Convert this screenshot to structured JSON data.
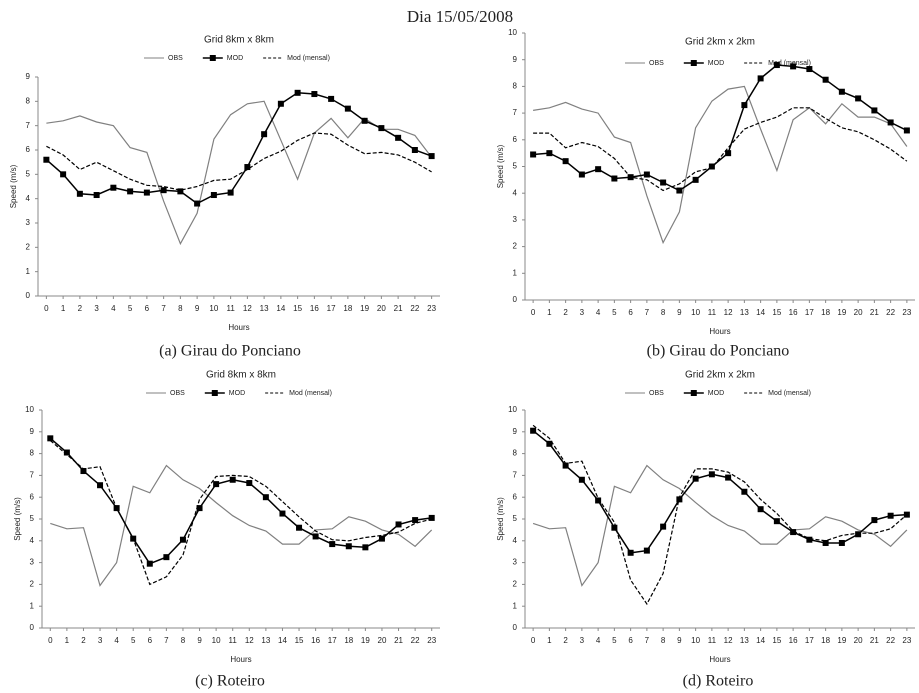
{
  "title": "Dia 15/05/2008",
  "chart_data": [
    {
      "type": "line",
      "title": "Grid 8km x 8km",
      "caption": "(a) Girau do Ponciano",
      "xlabel": "Hours",
      "ylabel": "Speed (m/s)",
      "x": [
        0,
        1,
        2,
        3,
        4,
        5,
        6,
        7,
        8,
        9,
        10,
        11,
        12,
        13,
        14,
        15,
        16,
        17,
        18,
        19,
        20,
        21,
        22,
        23
      ],
      "xlim": [
        -0.5,
        23.5
      ],
      "xticks": [
        0,
        1,
        2,
        3,
        4,
        5,
        6,
        7,
        8,
        9,
        10,
        11,
        12,
        13,
        14,
        15,
        16,
        17,
        18,
        19,
        20,
        21,
        22,
        23
      ],
      "ylim": [
        0,
        9
      ],
      "yticks": [
        0,
        1,
        2,
        3,
        4,
        5,
        6,
        7,
        8,
        9
      ],
      "series": [
        {
          "name": "OBS",
          "color": "#808080",
          "dashed": false,
          "marker": "none",
          "values": [
            7.1,
            7.2,
            7.4,
            7.15,
            7.0,
            6.1,
            5.9,
            3.9,
            2.15,
            3.4,
            6.45,
            7.45,
            7.9,
            8.0,
            6.4,
            4.8,
            6.7,
            7.3,
            6.5,
            7.3,
            6.85,
            6.85,
            6.6,
            5.7
          ]
        },
        {
          "name": "MOD",
          "color": "#000000",
          "dashed": false,
          "marker": "square",
          "values": [
            5.6,
            5.0,
            4.2,
            4.15,
            4.45,
            4.3,
            4.25,
            4.35,
            4.3,
            3.8,
            4.15,
            4.25,
            5.3,
            6.65,
            7.9,
            8.35,
            8.3,
            8.1,
            7.7,
            7.2,
            6.9,
            6.5,
            6.0,
            5.75
          ]
        },
        {
          "name": "Mod (mensal)",
          "color": "#000000",
          "dashed": true,
          "marker": "none",
          "values": [
            6.15,
            5.8,
            5.2,
            5.5,
            5.15,
            4.8,
            4.55,
            4.5,
            4.35,
            4.5,
            4.75,
            4.8,
            5.2,
            5.65,
            5.95,
            6.4,
            6.7,
            6.65,
            6.2,
            5.85,
            5.9,
            5.8,
            5.5,
            5.1
          ]
        }
      ]
    },
    {
      "type": "line",
      "title": "Grid 2km x 2km",
      "caption": "(b) Girau do Ponciano",
      "xlabel": "Hours",
      "ylabel": "Speed (m/s)",
      "x": [
        0,
        1,
        2,
        3,
        4,
        5,
        6,
        7,
        8,
        9,
        10,
        11,
        12,
        13,
        14,
        15,
        16,
        17,
        18,
        19,
        20,
        21,
        22,
        23
      ],
      "xlim": [
        -0.5,
        23.5
      ],
      "xticks": [
        0,
        1,
        2,
        3,
        4,
        5,
        6,
        7,
        8,
        9,
        10,
        11,
        12,
        13,
        14,
        15,
        16,
        17,
        18,
        19,
        20,
        21,
        22,
        23
      ],
      "ylim": [
        0,
        10
      ],
      "yticks": [
        0,
        1,
        2,
        3,
        4,
        5,
        6,
        7,
        8,
        9,
        10
      ],
      "series": [
        {
          "name": "OBS",
          "color": "#808080",
          "dashed": false,
          "marker": "none",
          "values": [
            7.1,
            7.2,
            7.4,
            7.15,
            7.0,
            6.1,
            5.9,
            3.9,
            2.15,
            3.3,
            6.45,
            7.45,
            7.9,
            8.0,
            6.4,
            4.85,
            6.75,
            7.2,
            6.6,
            7.35,
            6.85,
            6.85,
            6.6,
            5.75
          ]
        },
        {
          "name": "MOD",
          "color": "#000000",
          "dashed": false,
          "marker": "square",
          "values": [
            5.45,
            5.5,
            5.2,
            4.7,
            4.9,
            4.55,
            4.6,
            4.7,
            4.4,
            4.1,
            4.5,
            5.0,
            5.5,
            7.3,
            8.3,
            8.8,
            8.75,
            8.65,
            8.25,
            7.8,
            7.55,
            7.1,
            6.65,
            6.35
          ]
        },
        {
          "name": "Mod (mensal)",
          "color": "#000000",
          "dashed": true,
          "marker": "none",
          "values": [
            6.25,
            6.25,
            5.7,
            5.9,
            5.75,
            5.3,
            4.6,
            4.5,
            4.1,
            4.35,
            4.8,
            4.95,
            5.7,
            6.4,
            6.65,
            6.85,
            7.2,
            7.2,
            6.8,
            6.45,
            6.3,
            6.0,
            5.65,
            5.2
          ]
        }
      ]
    },
    {
      "type": "line",
      "title": "Grid 8km x 8km",
      "caption": "(c) Roteiro",
      "xlabel": "Hours",
      "ylabel": "Speed (m/s)",
      "x": [
        0,
        1,
        2,
        3,
        4,
        5,
        6,
        7,
        8,
        9,
        10,
        11,
        12,
        13,
        14,
        15,
        16,
        17,
        18,
        19,
        20,
        21,
        22,
        23
      ],
      "xlim": [
        -0.5,
        23.5
      ],
      "xticks": [
        0,
        1,
        2,
        3,
        4,
        5,
        6,
        7,
        8,
        9,
        10,
        11,
        12,
        13,
        14,
        15,
        16,
        17,
        18,
        19,
        20,
        21,
        22,
        23
      ],
      "ylim": [
        0,
        10
      ],
      "yticks": [
        0,
        1,
        2,
        3,
        4,
        5,
        6,
        7,
        8,
        9,
        10
      ],
      "series": [
        {
          "name": "OBS",
          "color": "#808080",
          "dashed": false,
          "marker": "none",
          "values": [
            4.8,
            4.55,
            4.6,
            1.95,
            3.0,
            6.5,
            6.2,
            7.45,
            6.8,
            6.4,
            5.75,
            5.15,
            4.7,
            4.45,
            3.85,
            3.85,
            4.5,
            4.55,
            5.1,
            4.9,
            4.5,
            4.3,
            3.75,
            4.5
          ]
        },
        {
          "name": "MOD",
          "color": "#000000",
          "dashed": false,
          "marker": "square",
          "values": [
            8.7,
            8.05,
            7.2,
            6.55,
            5.5,
            4.1,
            2.95,
            3.25,
            4.05,
            5.5,
            6.6,
            6.8,
            6.65,
            6.0,
            5.25,
            4.6,
            4.2,
            3.85,
            3.75,
            3.7,
            4.1,
            4.75,
            4.95,
            5.05
          ]
        },
        {
          "name": "Mod (mensal)",
          "color": "#000000",
          "dashed": true,
          "marker": "none",
          "values": [
            8.6,
            7.95,
            7.3,
            7.4,
            5.5,
            4.1,
            2.0,
            2.35,
            3.35,
            5.9,
            6.95,
            7.0,
            6.95,
            6.5,
            5.8,
            5.1,
            4.45,
            4.05,
            4.0,
            4.15,
            4.25,
            4.4,
            4.8,
            5.0
          ]
        }
      ]
    },
    {
      "type": "line",
      "title": "Grid 2km x 2km",
      "caption": "(d) Roteiro",
      "xlabel": "Hours",
      "ylabel": "Speed (m/s)",
      "x": [
        0,
        1,
        2,
        3,
        4,
        5,
        6,
        7,
        8,
        9,
        10,
        11,
        12,
        13,
        14,
        15,
        16,
        17,
        18,
        19,
        20,
        21,
        22,
        23
      ],
      "xlim": [
        -0.5,
        23.5
      ],
      "xticks": [
        0,
        1,
        2,
        3,
        4,
        5,
        6,
        7,
        8,
        9,
        10,
        11,
        12,
        13,
        14,
        15,
        16,
        17,
        18,
        19,
        20,
        21,
        22,
        23
      ],
      "ylim": [
        0,
        10
      ],
      "yticks": [
        0,
        1,
        2,
        3,
        4,
        5,
        6,
        7,
        8,
        9,
        10
      ],
      "series": [
        {
          "name": "OBS",
          "color": "#808080",
          "dashed": false,
          "marker": "none",
          "values": [
            4.8,
            4.55,
            4.6,
            1.95,
            3.0,
            6.5,
            6.2,
            7.45,
            6.8,
            6.4,
            5.75,
            5.15,
            4.7,
            4.45,
            3.85,
            3.85,
            4.5,
            4.55,
            5.1,
            4.9,
            4.5,
            4.3,
            3.75,
            4.5
          ]
        },
        {
          "name": "MOD",
          "color": "#000000",
          "dashed": false,
          "marker": "square",
          "values": [
            9.05,
            8.45,
            7.45,
            6.8,
            5.85,
            4.6,
            3.45,
            3.55,
            4.65,
            5.9,
            6.85,
            7.05,
            6.9,
            6.25,
            5.45,
            4.9,
            4.4,
            4.05,
            3.9,
            3.9,
            4.3,
            4.95,
            5.15,
            5.2
          ]
        },
        {
          "name": "Mod (mensal)",
          "color": "#000000",
          "dashed": true,
          "marker": "none",
          "values": [
            9.3,
            8.7,
            7.55,
            7.65,
            5.95,
            4.85,
            2.2,
            1.1,
            2.5,
            6.0,
            7.3,
            7.3,
            7.15,
            6.7,
            5.9,
            5.25,
            4.45,
            4.1,
            4.0,
            4.25,
            4.35,
            4.35,
            4.55,
            5.2
          ]
        }
      ]
    }
  ]
}
